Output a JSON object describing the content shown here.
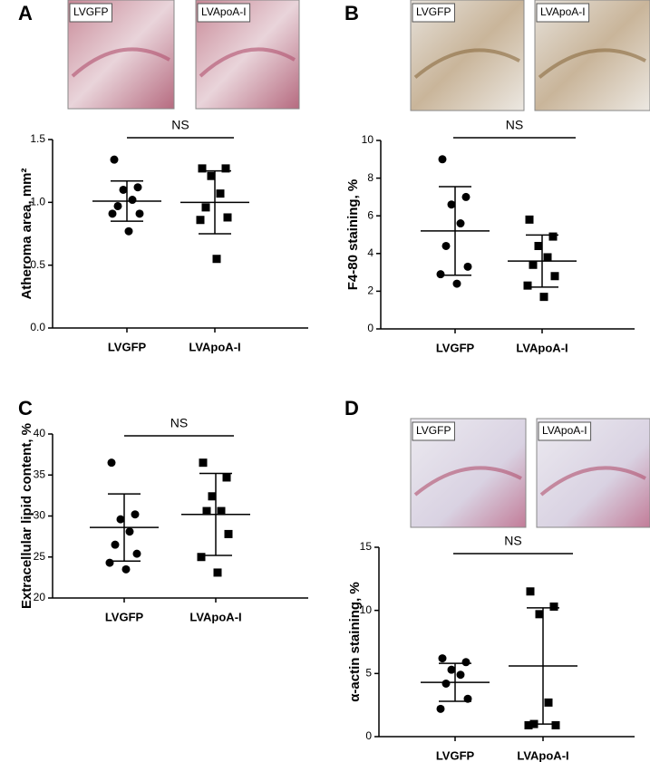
{
  "chart_data": [
    {
      "type": "dotplot",
      "panel": "A",
      "ylabel": "Atheroma area, mm²",
      "annotation": "NS",
      "image_labels": [
        "LVGFP",
        "LVApoA-I"
      ],
      "categories": [
        "LVGFP",
        "LVApoA-I"
      ],
      "markers": [
        "circle",
        "square"
      ],
      "color": "#000000",
      "points": [
        [
          1.34,
          1.12,
          1.1,
          1.02,
          0.97,
          0.91,
          0.91,
          0.77
        ],
        [
          1.27,
          1.27,
          1.21,
          1.07,
          0.96,
          0.88,
          0.86,
          0.55
        ]
      ],
      "means": [
        1.01,
        1.0
      ],
      "sds": [
        0.16,
        0.25
      ],
      "ylim": [
        0,
        1.5
      ],
      "yticks": [
        {
          "value": 0,
          "label": "0.0"
        },
        0.5,
        {
          "value": 1,
          "label": "1.0"
        },
        1.5
      ]
    },
    {
      "type": "dotplot",
      "panel": "B",
      "ylabel": "F4-80 staining, %",
      "annotation": "NS",
      "image_labels": [
        "LVGFP",
        "LVApoA-I"
      ],
      "categories": [
        "LVGFP",
        "LVApoA-I"
      ],
      "markers": [
        "circle",
        "square"
      ],
      "color": "#000000",
      "points": [
        [
          9.0,
          7.0,
          6.6,
          5.6,
          4.4,
          3.3,
          2.9,
          2.4
        ],
        [
          5.8,
          4.9,
          4.4,
          3.8,
          3.4,
          2.8,
          2.3,
          1.7
        ]
      ],
      "means": [
        5.2,
        3.6
      ],
      "sds": [
        2.35,
        1.38
      ],
      "ylim": [
        0,
        10
      ],
      "yticks": [
        0,
        2,
        4,
        6,
        8,
        10
      ]
    },
    {
      "type": "dotplot",
      "panel": "C",
      "ylabel": "Extracellular lipid content, %",
      "annotation": "NS",
      "categories": [
        "LVGFP",
        "LVApoA-I"
      ],
      "markers": [
        "circle",
        "square"
      ],
      "color": "#000000",
      "points": [
        [
          36.5,
          30.2,
          29.6,
          28.1,
          26.5,
          25.4,
          24.3,
          23.5
        ],
        [
          36.5,
          34.7,
          32.4,
          30.6,
          30.6,
          27.8,
          25.0,
          23.1
        ]
      ],
      "means": [
        28.6,
        30.2
      ],
      "sds": [
        4.1,
        5.0
      ],
      "ylim": [
        20,
        40
      ],
      "yticks": [
        20,
        25,
        30,
        35,
        40
      ]
    },
    {
      "type": "dotplot",
      "panel": "D",
      "ylabel": "α-actin staining, %",
      "annotation": "NS",
      "image_labels": [
        "LVGFP",
        "LVApoA-I"
      ],
      "categories": [
        "LVGFP",
        "LVApoA-I"
      ],
      "markers": [
        "circle",
        "square"
      ],
      "color": "#000000",
      "points": [
        [
          6.2,
          5.9,
          5.3,
          4.9,
          4.2,
          3.0,
          2.2
        ],
        [
          11.5,
          10.3,
          9.7,
          2.7,
          1.0,
          0.9,
          0.9
        ]
      ],
      "means": [
        4.3,
        5.6
      ],
      "sds": [
        1.5,
        4.6
      ],
      "ylim": [
        0,
        15
      ],
      "yticks": [
        0,
        5,
        10,
        15
      ]
    }
  ]
}
